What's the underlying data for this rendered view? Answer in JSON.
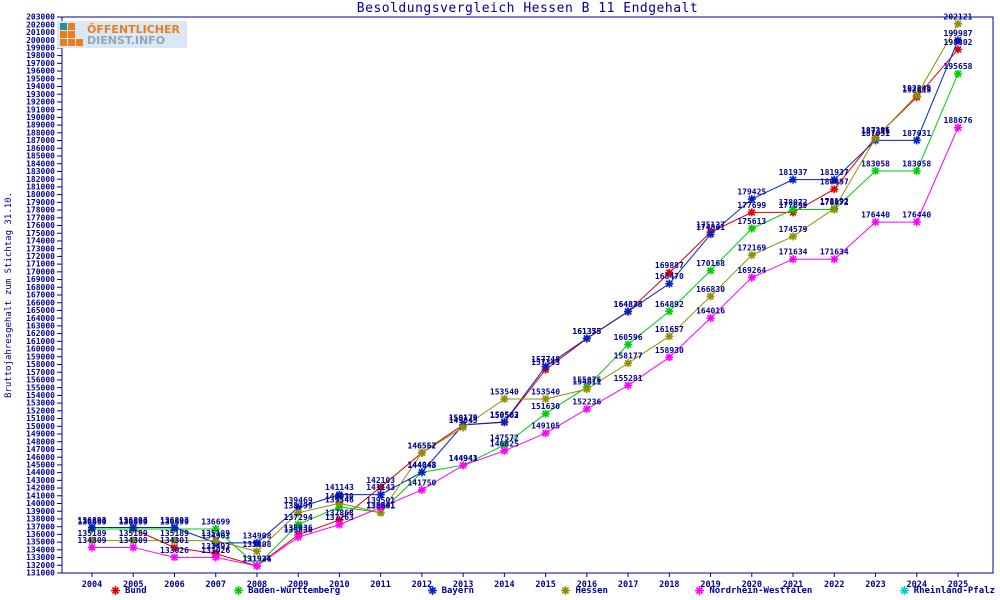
{
  "title": "Besoldungsvergleich Hessen B 11 Endgehalt",
  "logo": {
    "line1": "ÖFFENTLICHER",
    "line2": "DIENST.INFO"
  },
  "colors": {
    "text": "#000099",
    "axis": "#000099",
    "background": "#ffffff",
    "logo_orange": "#ef7c1b",
    "logo_gray": "#93a5b8",
    "logo_teal": "#2a8f9d",
    "logo_bg": "#dbe7f3"
  },
  "chart_data": {
    "type": "line",
    "title": "Besoldungsvergleich Hessen B 11 Endgehalt",
    "xlabel": "",
    "ylabel": "Bruttojahresgehalt zum Stichtag 31.10.",
    "ylim": [
      131000,
      203000
    ],
    "ytick_step": 1000,
    "grid": false,
    "legend_position": "bottom",
    "point_labels": true,
    "x": [
      2004,
      2005,
      2006,
      2007,
      2008,
      2009,
      2010,
      2011,
      2012,
      2013,
      2014,
      2015,
      2016,
      2017,
      2018,
      2019,
      2020,
      2021,
      2022,
      2023,
      2024,
      2025
    ],
    "series": [
      {
        "name": "Bund",
        "color": "#dd0000",
        "values": [
          136699,
          136699,
          134301,
          133493,
          131931,
          135936,
          137868,
          142103,
          146562,
          150175,
          150502,
          157343,
          161355,
          164835,
          169887,
          175137,
          177699,
          177699,
          180697,
          187396,
          192613,
          198802
        ]
      },
      {
        "name": "Baden-Württemberg",
        "color": "#00cc00",
        "values": [
          136699,
          136699,
          136699,
          136699,
          131934,
          137294,
          139546,
          138841,
          144043,
          144943,
          147572,
          151630,
          155076,
          160596,
          164892,
          170168,
          175613,
          178072,
          178072,
          183058,
          183058,
          195658
        ]
      },
      {
        "name": "Bayern",
        "color": "#0022cc",
        "values": [
          136893,
          136893,
          136893,
          134901,
          134908,
          139469,
          141143,
          141143,
          144048,
          150179,
          150563,
          157748,
          161375,
          164878,
          168470,
          174861,
          179425,
          181937,
          181937,
          187031,
          187031,
          199987
        ]
      },
      {
        "name": "Hessen",
        "color": "#8f8f00",
        "values": [
          135189,
          135189,
          135189,
          135189,
          133808,
          138799,
          140030,
          138801,
          146557,
          149845,
          153540,
          153540,
          154811,
          158177,
          161657,
          166830,
          172169,
          174579,
          178192,
          187311,
          192848,
          202121
        ]
      },
      {
        "name": "Nordrhein-Westfalen",
        "color": "#ff00ff",
        "values": [
          134309,
          134309,
          133026,
          133026,
          131921,
          135636,
          137263,
          139501,
          141750,
          144941,
          146825,
          149105,
          152236,
          155281,
          158930,
          164016,
          169264,
          171634,
          171634,
          176440,
          176440,
          188676
        ]
      },
      {
        "name": "Rheinland-Pfalz",
        "color": "#00cccc",
        "values": []
      }
    ]
  }
}
